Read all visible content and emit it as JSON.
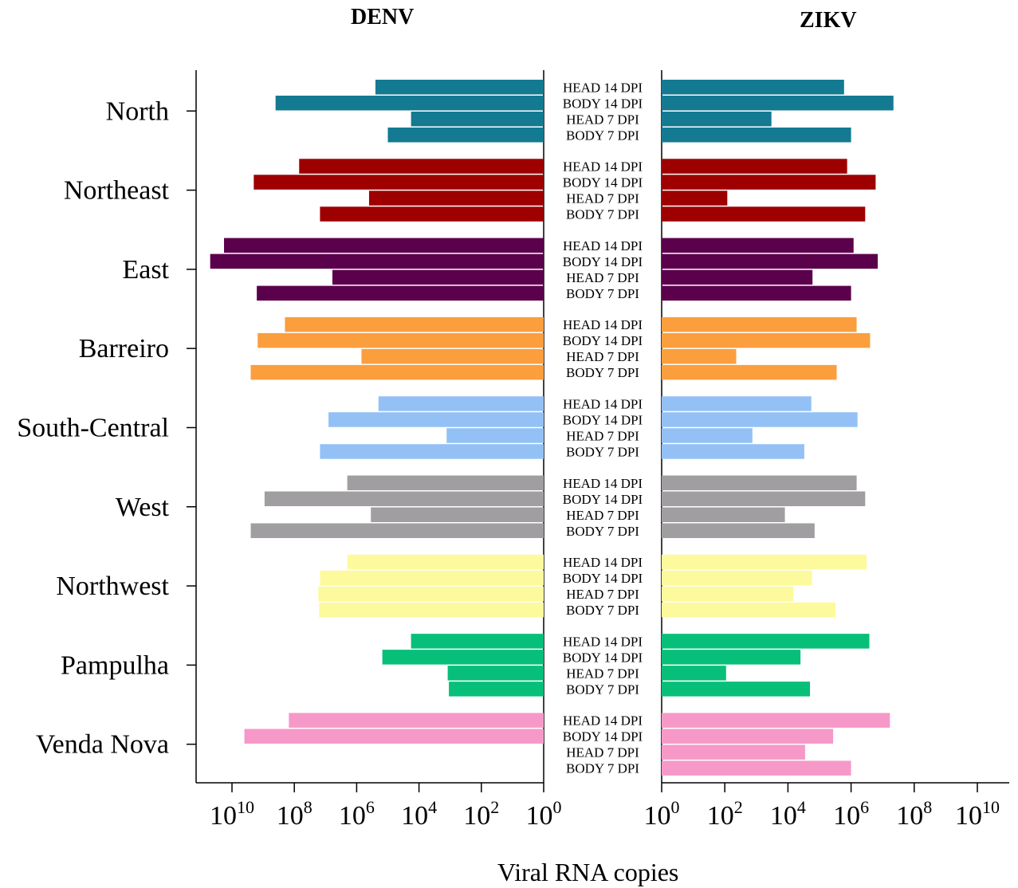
{
  "panels": {
    "left_title": "DENV",
    "right_title": "ZIKV"
  },
  "xlabel": "Viral RNA copies",
  "chart_data": {
    "type": "bar",
    "orientation": "horizontal",
    "xscale": "log10",
    "xlim": [
      1,
      100000000000.0
    ],
    "xticks": [
      {
        "value": 1,
        "label": "10",
        "exp": "0"
      },
      {
        "value": 100,
        "label": "10",
        "exp": "2"
      },
      {
        "value": 10000,
        "label": "10",
        "exp": "4"
      },
      {
        "value": 1000000,
        "label": "10",
        "exp": "6"
      },
      {
        "value": 100000000,
        "label": "10",
        "exp": "8"
      },
      {
        "value": 10000000000,
        "label": "10",
        "exp": "10"
      }
    ],
    "measures": [
      "HEAD 14 DPI",
      "BODY 14 DPI",
      "HEAD 7 DPI",
      "BODY 7 DPI"
    ],
    "groups": [
      {
        "name": "North",
        "color": "#137a92",
        "DENV": [
          250000.0,
          400000000.0,
          18000.0,
          100000.0
        ],
        "ZIKV": [
          600000.0,
          22000000.0,
          3000.0,
          1000000.0
        ]
      },
      {
        "name": "Northeast",
        "color": "#9e0000",
        "DENV": [
          70000000.0,
          2000000000.0,
          400000.0,
          15000000.0
        ],
        "ZIKV": [
          750000.0,
          6000000.0,
          120.0,
          2800000.0
        ]
      },
      {
        "name": "East",
        "color": "#5b004b",
        "DENV": [
          18000000000.0,
          50000000000.0,
          6000000.0,
          1600000000.0
        ],
        "ZIKV": [
          1200000.0,
          7000000.0,
          60000.0,
          1000000.0
        ]
      },
      {
        "name": "Barreiro",
        "color": "#fb9e3e",
        "DENV": [
          200000000.0,
          1500000000.0,
          700000.0,
          2500000000.0
        ],
        "ZIKV": [
          1500000.0,
          4000000.0,
          230.0,
          350000.0
        ]
      },
      {
        "name": "South-Central",
        "color": "#93c1f5",
        "DENV": [
          200000.0,
          8000000.0,
          1300.0,
          15000000.0
        ],
        "ZIKV": [
          55000.0,
          1600000.0,
          750.0,
          33000.0
        ]
      },
      {
        "name": "West",
        "color": "#a19ea1",
        "DENV": [
          2000000.0,
          900000000.0,
          350000.0,
          2500000000.0
        ],
        "ZIKV": [
          1500000.0,
          2800000.0,
          8000.0,
          70000.0
        ]
      },
      {
        "name": "Northwest",
        "color": "#fcfa9c",
        "DENV": [
          2000000.0,
          15000000.0,
          17000000.0,
          16000000.0
        ],
        "ZIKV": [
          3100000.0,
          58000.0,
          15000.0,
          320000.0
        ]
      },
      {
        "name": "Pampulha",
        "color": "#08bf79",
        "DENV": [
          18000.0,
          150000.0,
          1200.0,
          1100.0
        ],
        "ZIKV": [
          3800000.0,
          25000.0,
          110.0,
          50000.0
        ]
      },
      {
        "name": "Venda Nova",
        "color": "#f699c8",
        "DENV": [
          150000000.0,
          4000000000.0,
          null,
          null
        ],
        "ZIKV": [
          17000000.0,
          270000.0,
          35000.0,
          1000000.0
        ]
      }
    ]
  }
}
